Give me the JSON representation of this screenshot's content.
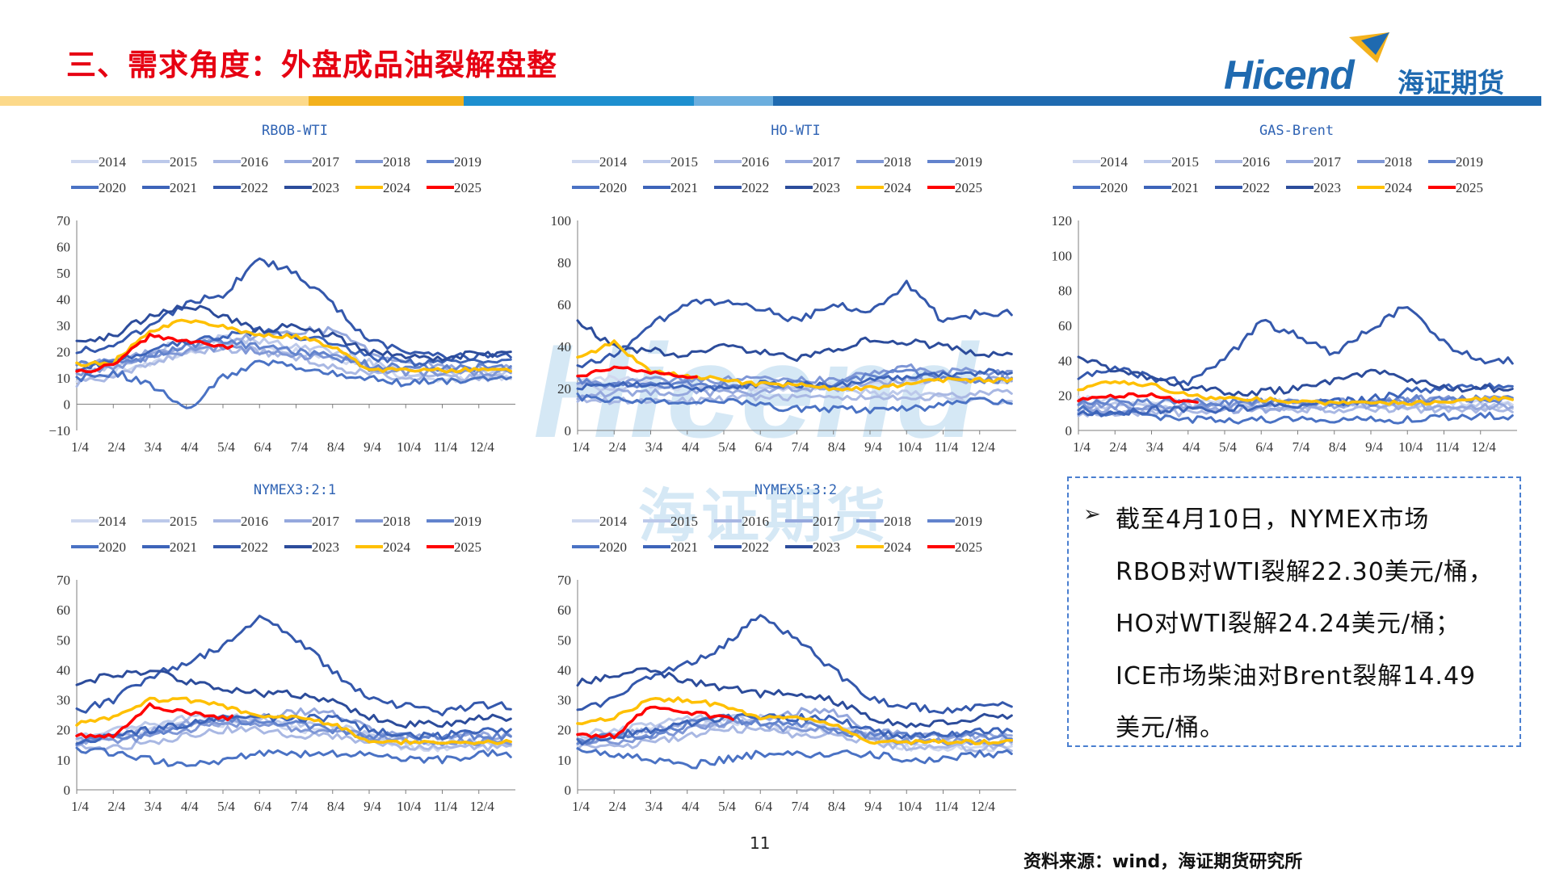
{
  "title": "三、需求角度：外盘成品油裂解盘整",
  "logo": {
    "wordmark": "Hicend",
    "name": "海证期货"
  },
  "colors": {
    "title": "#e60012",
    "bar_segments": [
      "#fcd98a",
      "#f3b11c",
      "#1d8fcf",
      "#6baede",
      "#1f6ab0"
    ],
    "years": {
      "2014": "#cfd8ef",
      "2015": "#bcc9ea",
      "2016": "#a9b8e3",
      "2017": "#95a8dd",
      "2018": "#7f97d6",
      "2019": "#6283cd",
      "2020": "#4a72c4",
      "2021": "#3d64b9",
      "2022": "#3458ac",
      "2023": "#2c4c9b",
      "2024": "#ffc000",
      "2025": "#ff0000"
    }
  },
  "legend_years": [
    "2014",
    "2015",
    "2016",
    "2017",
    "2018",
    "2019",
    "2020",
    "2021",
    "2022",
    "2023",
    "2024",
    "2025"
  ],
  "chart_data": [
    {
      "type": "line",
      "title": "RBOB-WTI",
      "x_ticks": [
        "1/4",
        "2/4",
        "3/4",
        "4/4",
        "5/4",
        "6/4",
        "7/4",
        "8/4",
        "9/4",
        "10/4",
        "11/4",
        "12/4"
      ],
      "y_ticks": [
        -10,
        0,
        10,
        20,
        30,
        40,
        50,
        60,
        70
      ],
      "ylim": [
        -10,
        70
      ],
      "series": [
        {
          "name": "2014",
          "values": [
            10,
            12,
            16,
            20,
            22,
            22,
            20,
            18,
            14,
            10,
            9,
            10
          ]
        },
        {
          "name": "2015",
          "values": [
            12,
            14,
            20,
            24,
            25,
            24,
            22,
            20,
            16,
            12,
            12,
            12
          ]
        },
        {
          "name": "2016",
          "values": [
            8,
            10,
            16,
            20,
            21,
            20,
            18,
            14,
            12,
            10,
            10,
            10
          ]
        },
        {
          "name": "2017",
          "values": [
            15,
            16,
            20,
            22,
            24,
            26,
            28,
            28,
            20,
            16,
            14,
            14
          ]
        },
        {
          "name": "2018",
          "values": [
            12,
            14,
            18,
            20,
            22,
            20,
            18,
            18,
            14,
            12,
            12,
            12
          ]
        },
        {
          "name": "2019",
          "values": [
            15,
            16,
            18,
            22,
            24,
            22,
            20,
            18,
            15,
            14,
            14,
            14
          ]
        },
        {
          "name": "2020",
          "values": [
            10,
            12,
            8,
            -2,
            10,
            16,
            14,
            12,
            10,
            8,
            9,
            10
          ]
        },
        {
          "name": "2021",
          "values": [
            14,
            16,
            20,
            24,
            26,
            28,
            26,
            24,
            18,
            16,
            16,
            16
          ]
        },
        {
          "name": "2022",
          "values": [
            20,
            22,
            30,
            38,
            42,
            55,
            50,
            38,
            24,
            20,
            18,
            18
          ]
        },
        {
          "name": "2023",
          "values": [
            24,
            26,
            34,
            38,
            34,
            28,
            30,
            26,
            20,
            18,
            18,
            19
          ]
        },
        {
          "name": "2024",
          "values": [
            15,
            16,
            28,
            32,
            30,
            26,
            26,
            22,
            13,
            13,
            13,
            13
          ]
        },
        {
          "name": "2025",
          "values": [
            12,
            15,
            26,
            24,
            22
          ]
        }
      ]
    },
    {
      "type": "line",
      "title": "HO-WTI",
      "x_ticks": [
        "1/4",
        "2/4",
        "3/4",
        "4/4",
        "5/4",
        "6/4",
        "7/4",
        "8/4",
        "9/4",
        "10/4",
        "11/4",
        "12/4"
      ],
      "y_ticks": [
        0,
        20,
        40,
        60,
        80,
        100
      ],
      "ylim": [
        0,
        100
      ],
      "series": [
        {
          "name": "2014",
          "values": [
            24,
            25,
            22,
            20,
            20,
            20,
            20,
            22,
            22,
            24,
            24,
            24
          ]
        },
        {
          "name": "2015",
          "values": [
            22,
            20,
            22,
            22,
            20,
            20,
            20,
            20,
            18,
            18,
            16,
            14
          ]
        },
        {
          "name": "2016",
          "values": [
            14,
            14,
            14,
            14,
            15,
            16,
            16,
            16,
            16,
            16,
            16,
            18
          ]
        },
        {
          "name": "2017",
          "values": [
            16,
            18,
            18,
            18,
            18,
            18,
            20,
            20,
            22,
            24,
            24,
            24
          ]
        },
        {
          "name": "2018",
          "values": [
            22,
            22,
            24,
            24,
            24,
            26,
            24,
            24,
            28,
            30,
            28,
            28
          ]
        },
        {
          "name": "2019",
          "values": [
            24,
            22,
            22,
            22,
            22,
            22,
            22,
            22,
            26,
            28,
            24,
            24
          ]
        },
        {
          "name": "2020",
          "values": [
            16,
            14,
            14,
            14,
            14,
            12,
            10,
            10,
            10,
            10,
            12,
            14
          ]
        },
        {
          "name": "2021",
          "values": [
            20,
            22,
            22,
            20,
            20,
            22,
            22,
            22,
            24,
            26,
            26,
            28
          ]
        },
        {
          "name": "2022",
          "values": [
            30,
            36,
            50,
            60,
            62,
            58,
            52,
            60,
            56,
            70,
            52,
            56
          ]
        },
        {
          "name": "2023",
          "values": [
            52,
            40,
            38,
            36,
            40,
            38,
            34,
            38,
            44,
            42,
            40,
            36
          ]
        },
        {
          "name": "2024",
          "values": [
            34,
            42,
            28,
            26,
            24,
            22,
            22,
            20,
            20,
            22,
            24,
            24
          ]
        },
        {
          "name": "2025",
          "values": [
            26,
            30,
            28,
            26
          ]
        }
      ]
    },
    {
      "type": "line",
      "title": "GAS-Brent",
      "x_ticks": [
        "1/4",
        "2/4",
        "3/4",
        "4/4",
        "5/4",
        "6/4",
        "7/4",
        "8/4",
        "9/4",
        "10/4",
        "11/4",
        "12/4"
      ],
      "y_ticks": [
        0,
        20,
        40,
        60,
        80,
        100,
        120
      ],
      "ylim": [
        0,
        120
      ],
      "series": [
        {
          "name": "2014",
          "values": [
            18,
            16,
            16,
            16,
            16,
            16,
            16,
            16,
            16,
            16,
            16,
            16
          ]
        },
        {
          "name": "2015",
          "values": [
            14,
            14,
            14,
            14,
            14,
            14,
            14,
            14,
            14,
            14,
            14,
            14
          ]
        },
        {
          "name": "2016",
          "values": [
            10,
            10,
            10,
            10,
            12,
            12,
            12,
            12,
            12,
            12,
            12,
            12
          ]
        },
        {
          "name": "2017",
          "values": [
            12,
            12,
            12,
            12,
            12,
            12,
            12,
            14,
            14,
            14,
            14,
            14
          ]
        },
        {
          "name": "2018",
          "values": [
            14,
            14,
            14,
            14,
            14,
            16,
            16,
            16,
            16,
            18,
            18,
            18
          ]
        },
        {
          "name": "2019",
          "values": [
            16,
            16,
            16,
            16,
            16,
            16,
            16,
            16,
            16,
            18,
            18,
            18
          ]
        },
        {
          "name": "2020",
          "values": [
            12,
            10,
            8,
            6,
            6,
            6,
            6,
            6,
            6,
            6,
            8,
            8
          ]
        },
        {
          "name": "2021",
          "values": [
            10,
            10,
            12,
            12,
            12,
            14,
            14,
            16,
            18,
            22,
            24,
            26
          ]
        },
        {
          "name": "2022",
          "values": [
            30,
            36,
            30,
            28,
            40,
            62,
            54,
            44,
            58,
            72,
            50,
            40
          ]
        },
        {
          "name": "2023",
          "values": [
            42,
            34,
            30,
            24,
            22,
            22,
            24,
            28,
            34,
            30,
            24,
            24
          ]
        },
        {
          "name": "2024",
          "values": [
            24,
            28,
            26,
            20,
            18,
            18,
            16,
            16,
            16,
            16,
            16,
            18
          ]
        },
        {
          "name": "2025",
          "values": [
            18,
            20,
            20,
            16
          ]
        }
      ]
    },
    {
      "type": "line",
      "title": "NYMEX3:2:1",
      "x_ticks": [
        "1/4",
        "2/4",
        "3/4",
        "4/4",
        "5/4",
        "6/4",
        "7/4",
        "8/4",
        "9/4",
        "10/4",
        "11/4",
        "12/4"
      ],
      "y_ticks": [
        0,
        10,
        20,
        30,
        40,
        50,
        60,
        70
      ],
      "ylim": [
        0,
        70
      ],
      "series": [
        {
          "name": "2014",
          "values": [
            16,
            18,
            20,
            22,
            22,
            22,
            20,
            20,
            18,
            14,
            14,
            14
          ]
        },
        {
          "name": "2015",
          "values": [
            18,
            20,
            22,
            24,
            24,
            24,
            22,
            22,
            18,
            16,
            16,
            16
          ]
        },
        {
          "name": "2016",
          "values": [
            14,
            14,
            16,
            18,
            20,
            20,
            18,
            18,
            16,
            14,
            14,
            14
          ]
        },
        {
          "name": "2017",
          "values": [
            16,
            18,
            20,
            22,
            22,
            24,
            26,
            26,
            20,
            18,
            18,
            18
          ]
        },
        {
          "name": "2018",
          "values": [
            16,
            16,
            18,
            20,
            22,
            22,
            20,
            20,
            18,
            16,
            16,
            16
          ]
        },
        {
          "name": "2019",
          "values": [
            16,
            18,
            18,
            22,
            24,
            22,
            22,
            20,
            18,
            18,
            18,
            18
          ]
        },
        {
          "name": "2020",
          "values": [
            14,
            12,
            10,
            8,
            10,
            12,
            12,
            12,
            12,
            10,
            10,
            12
          ]
        },
        {
          "name": "2021",
          "values": [
            16,
            18,
            20,
            22,
            24,
            24,
            24,
            24,
            20,
            18,
            18,
            20
          ]
        },
        {
          "name": "2022",
          "values": [
            26,
            30,
            38,
            42,
            48,
            58,
            50,
            40,
            30,
            28,
            26,
            28
          ]
        },
        {
          "name": "2023",
          "values": [
            36,
            38,
            40,
            36,
            34,
            32,
            32,
            30,
            24,
            22,
            22,
            24
          ]
        },
        {
          "name": "2024",
          "values": [
            22,
            24,
            30,
            30,
            28,
            24,
            24,
            22,
            16,
            16,
            16,
            16
          ]
        },
        {
          "name": "2025",
          "values": [
            18,
            18,
            28,
            26,
            24
          ]
        }
      ]
    },
    {
      "type": "line",
      "title": "NYMEX5:3:2",
      "x_ticks": [
        "1/4",
        "2/4",
        "3/4",
        "4/4",
        "5/4",
        "6/4",
        "7/4",
        "8/4",
        "9/4",
        "10/4",
        "11/4",
        "12/4"
      ],
      "y_ticks": [
        0,
        10,
        20,
        30,
        40,
        50,
        60,
        70
      ],
      "ylim": [
        0,
        70
      ],
      "series": [
        {
          "name": "2014",
          "values": [
            16,
            18,
            20,
            22,
            22,
            22,
            20,
            20,
            18,
            14,
            14,
            14
          ]
        },
        {
          "name": "2015",
          "values": [
            18,
            20,
            22,
            24,
            24,
            24,
            22,
            22,
            18,
            16,
            16,
            16
          ]
        },
        {
          "name": "2016",
          "values": [
            14,
            14,
            16,
            18,
            20,
            20,
            18,
            18,
            16,
            14,
            14,
            14
          ]
        },
        {
          "name": "2017",
          "values": [
            16,
            18,
            20,
            22,
            22,
            24,
            26,
            26,
            20,
            18,
            18,
            18
          ]
        },
        {
          "name": "2018",
          "values": [
            16,
            16,
            18,
            20,
            22,
            22,
            20,
            20,
            18,
            16,
            16,
            16
          ]
        },
        {
          "name": "2019",
          "values": [
            16,
            18,
            18,
            22,
            24,
            22,
            22,
            20,
            18,
            18,
            18,
            18
          ]
        },
        {
          "name": "2020",
          "values": [
            14,
            12,
            10,
            8,
            10,
            12,
            12,
            12,
            12,
            10,
            10,
            12
          ]
        },
        {
          "name": "2021",
          "values": [
            16,
            18,
            20,
            22,
            24,
            24,
            24,
            24,
            20,
            18,
            18,
            20
          ]
        },
        {
          "name": "2022",
          "values": [
            26,
            30,
            38,
            42,
            48,
            58,
            50,
            40,
            30,
            28,
            26,
            28
          ]
        },
        {
          "name": "2023",
          "values": [
            36,
            38,
            40,
            36,
            34,
            32,
            32,
            30,
            24,
            22,
            22,
            24
          ]
        },
        {
          "name": "2024",
          "values": [
            22,
            24,
            30,
            30,
            28,
            24,
            24,
            22,
            16,
            16,
            16,
            16
          ]
        },
        {
          "name": "2025",
          "values": [
            18,
            18,
            28,
            26,
            24
          ]
        }
      ]
    }
  ],
  "note": {
    "lines": [
      "截至4月10日，NYMEX市场",
      "RBOB对WTI裂解22.30美元/桶，",
      "HO对WTI裂解24.24美元/桶；",
      "ICE市场柴油对Brent裂解14.49",
      "美元/桶。"
    ]
  },
  "page_number": "11",
  "source": "资料来源：wind，海证期货研究所"
}
